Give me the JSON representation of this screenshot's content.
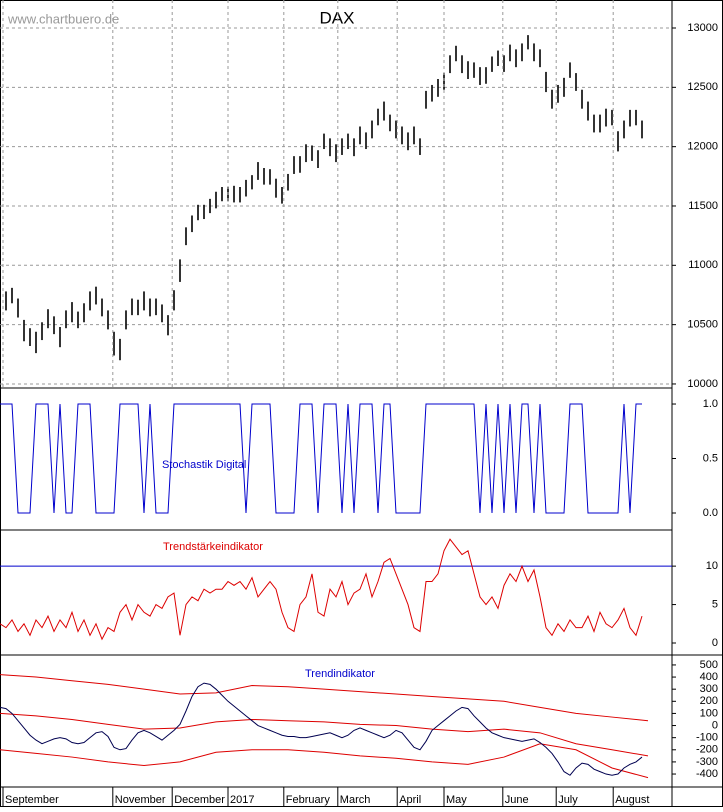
{
  "chart_data": [
    {
      "type": "ohlc",
      "title": "DAX",
      "subtitle": "www.chartbuero.de",
      "color": "#000000",
      "grid": true,
      "xlim": [
        0,
        112
      ],
      "ylim": [
        9966,
        13236
      ],
      "yticks": [
        10000,
        10500,
        11000,
        11500,
        12000,
        12500,
        13000
      ],
      "x": [
        0,
        1,
        2,
        3,
        4,
        5,
        6,
        7,
        8,
        9,
        10,
        11,
        12,
        13,
        14,
        15,
        16,
        17,
        18,
        19,
        20,
        21,
        22,
        23,
        24,
        25,
        26,
        27,
        28,
        29,
        30,
        31,
        32,
        33,
        34,
        35,
        36,
        37,
        38,
        39,
        40,
        41,
        42,
        43,
        44,
        45,
        46,
        47,
        48,
        49,
        50,
        51,
        52,
        53,
        54,
        55,
        56,
        57,
        58,
        59,
        60,
        61,
        62,
        63,
        64,
        65,
        66,
        67,
        68,
        69,
        70,
        71,
        72,
        73,
        74,
        75,
        76,
        77,
        78,
        79,
        80,
        81,
        82,
        83,
        84,
        85,
        86,
        87,
        88,
        89,
        90,
        91,
        92,
        93,
        94,
        95,
        96,
        97,
        98,
        99,
        100,
        101,
        102,
        103,
        104,
        105,
        106,
        107
      ],
      "high": [
        10680,
        10780,
        10810,
        10720,
        10540,
        10470,
        10440,
        10520,
        10630,
        10570,
        10480,
        10620,
        10690,
        10610,
        10680,
        10780,
        10820,
        10720,
        10620,
        10440,
        10380,
        10620,
        10720,
        10710,
        10780,
        10720,
        10720,
        10670,
        10580,
        10790,
        11050,
        11320,
        11420,
        11510,
        11510,
        11560,
        11620,
        11660,
        11660,
        11670,
        11660,
        11720,
        11760,
        11870,
        11820,
        11810,
        11730,
        11660,
        11770,
        11920,
        11920,
        12020,
        12010,
        11970,
        12110,
        12070,
        12020,
        12070,
        12110,
        12070,
        12170,
        12120,
        12220,
        12320,
        12380,
        12270,
        12220,
        12170,
        12120,
        12170,
        12070,
        12470,
        12520,
        12570,
        12620,
        12770,
        12850,
        12770,
        12720,
        12710,
        12670,
        12670,
        12760,
        12810,
        12770,
        12860,
        12820,
        12870,
        12940,
        12870,
        12820,
        12630,
        12480,
        12520,
        12580,
        12710,
        12620,
        12480,
        12380,
        12270,
        12270,
        12320,
        12310,
        12130,
        12220,
        12310,
        12310,
        12220
      ],
      "low": [
        10510,
        10620,
        10680,
        10560,
        10360,
        10320,
        10260,
        10370,
        10470,
        10420,
        10310,
        10470,
        10520,
        10470,
        10520,
        10620,
        10670,
        10570,
        10460,
        10240,
        10200,
        10460,
        10580,
        10580,
        10620,
        10570,
        10580,
        10520,
        10410,
        10620,
        10860,
        11170,
        11280,
        11380,
        11390,
        11440,
        11480,
        11540,
        11540,
        11530,
        11530,
        11580,
        11640,
        11720,
        11680,
        11680,
        11570,
        11520,
        11630,
        11770,
        11780,
        11870,
        11880,
        11820,
        11980,
        11920,
        11870,
        11930,
        11980,
        11920,
        12020,
        11980,
        12070,
        12180,
        12220,
        12130,
        12070,
        12020,
        11970,
        12020,
        11930,
        12320,
        12380,
        12420,
        12480,
        12620,
        12720,
        12620,
        12570,
        12580,
        12520,
        12530,
        12630,
        12680,
        12630,
        12720,
        12670,
        12720,
        12820,
        12720,
        12670,
        12460,
        12320,
        12370,
        12420,
        12580,
        12470,
        12320,
        12220,
        12120,
        12120,
        12170,
        12180,
        11960,
        12070,
        12170,
        12180,
        12070
      ]
    },
    {
      "type": "line",
      "title": "Stochastik Digital",
      "xlim": [
        0,
        112
      ],
      "ylim": [
        -0.156,
        1.147
      ],
      "yticks": [
        {
          "value": 0,
          "label": "0.0"
        },
        {
          "value": 0.5,
          "label": "0.5"
        },
        {
          "value": 1,
          "label": "1.0"
        }
      ],
      "series": [
        {
          "color": "#0000cc",
          "x": [
            0,
            1,
            2,
            3,
            4,
            5,
            6,
            7,
            8,
            9,
            10,
            11,
            12,
            13,
            14,
            15,
            16,
            17,
            18,
            19,
            20,
            21,
            22,
            23,
            24,
            25,
            26,
            27,
            28,
            29,
            30,
            31,
            32,
            33,
            34,
            35,
            36,
            37,
            38,
            39,
            40,
            41,
            42,
            43,
            44,
            45,
            46,
            47,
            48,
            49,
            50,
            51,
            52,
            53,
            54,
            55,
            56,
            57,
            58,
            59,
            60,
            61,
            62,
            63,
            64,
            65,
            66,
            67,
            68,
            69,
            70,
            71,
            72,
            73,
            74,
            75,
            76,
            77,
            78,
            79,
            80,
            81,
            82,
            83,
            84,
            85,
            86,
            87,
            88,
            89,
            90,
            91,
            92,
            93,
            94,
            95,
            96,
            97,
            98,
            99,
            100,
            101,
            102,
            103,
            104,
            105,
            106,
            107
          ],
          "values": [
            1,
            1,
            1,
            0,
            0,
            0,
            1,
            1,
            1,
            0,
            1,
            0,
            0,
            1,
            1,
            1,
            0,
            0,
            0,
            0,
            1,
            1,
            1,
            1,
            0,
            1,
            0,
            0,
            0,
            1,
            1,
            1,
            1,
            1,
            1,
            1,
            1,
            1,
            1,
            1,
            1,
            0,
            1,
            1,
            1,
            1,
            0,
            0,
            0,
            0,
            1,
            1,
            1,
            0,
            1,
            1,
            1,
            0,
            1,
            0,
            1,
            1,
            1,
            0,
            1,
            1,
            0,
            0,
            0,
            0,
            0,
            1,
            1,
            1,
            1,
            1,
            1,
            1,
            1,
            1,
            0,
            1,
            0,
            1,
            0,
            1,
            0,
            1,
            1,
            0,
            1,
            0,
            0,
            0,
            0,
            1,
            1,
            1,
            0,
            0,
            0,
            0,
            0,
            0,
            1,
            0,
            1,
            1
          ]
        }
      ]
    },
    {
      "type": "line",
      "title": "Trendstärkeindikator",
      "xlim": [
        0,
        112
      ],
      "ylim": [
        -1.56,
        14.7
      ],
      "yticks": [
        0,
        5,
        10
      ],
      "reference_line": 10,
      "reference_color": "#0000cc",
      "series": [
        {
          "color": "#dd0000",
          "x": [
            0,
            1,
            2,
            3,
            4,
            5,
            6,
            7,
            8,
            9,
            10,
            11,
            12,
            13,
            14,
            15,
            16,
            17,
            18,
            19,
            20,
            21,
            22,
            23,
            24,
            25,
            26,
            27,
            28,
            29,
            30,
            31,
            32,
            33,
            34,
            35,
            36,
            37,
            38,
            39,
            40,
            41,
            42,
            43,
            44,
            45,
            46,
            47,
            48,
            49,
            50,
            51,
            52,
            53,
            54,
            55,
            56,
            57,
            58,
            59,
            60,
            61,
            62,
            63,
            64,
            65,
            66,
            67,
            68,
            69,
            70,
            71,
            72,
            73,
            74,
            75,
            76,
            77,
            78,
            79,
            80,
            81,
            82,
            83,
            84,
            85,
            86,
            87,
            88,
            89,
            90,
            91,
            92,
            93,
            94,
            95,
            96,
            97,
            98,
            99,
            100,
            101,
            102,
            103,
            104,
            105,
            106,
            107
          ],
          "values": [
            2.5,
            2,
            3,
            1.5,
            2.5,
            1,
            3,
            2,
            3.5,
            1.5,
            3,
            2,
            4,
            1.5,
            3,
            1,
            2.5,
            0.5,
            2,
            1.5,
            4,
            5,
            3,
            5,
            4,
            3.5,
            5,
            4.5,
            6,
            6.5,
            1,
            5,
            6,
            5.5,
            7,
            6.5,
            7,
            7,
            8,
            7.5,
            8,
            7,
            8.5,
            6,
            7,
            8,
            7,
            4,
            2,
            1.5,
            5,
            6,
            9,
            4,
            3.5,
            7,
            6,
            8,
            5,
            6.5,
            7,
            9,
            6,
            8,
            10.5,
            11,
            9,
            7,
            5,
            2,
            1.5,
            8,
            8,
            9,
            12,
            13.5,
            12.5,
            11.5,
            12,
            9,
            6,
            5,
            6,
            4.5,
            7.5,
            9,
            8,
            10,
            8,
            9.5,
            6,
            2,
            1,
            2.5,
            1.5,
            3,
            2,
            2,
            3.5,
            1.5,
            4,
            2.5,
            2,
            3,
            4.5,
            2,
            1,
            3.5
          ]
        }
      ]
    },
    {
      "type": "line",
      "title": "Trendindikator",
      "xlim": [
        0,
        112
      ],
      "ylim": [
        -507,
        582
      ],
      "yticks": [
        -400,
        -300,
        -200,
        -100,
        0,
        100,
        200,
        300,
        400,
        500
      ],
      "xticks": [
        {
          "value": 0.5,
          "label": "September"
        },
        {
          "value": 18.8,
          "label": "November"
        },
        {
          "value": 28.7,
          "label": "December"
        },
        {
          "value": 38,
          "label": "2017"
        },
        {
          "value": 47.3,
          "label": "February"
        },
        {
          "value": 56.3,
          "label": "March"
        },
        {
          "value": 66.2,
          "label": "April"
        },
        {
          "value": 74,
          "label": "May"
        },
        {
          "value": 83.8,
          "label": "June"
        },
        {
          "value": 92.7,
          "label": "July"
        },
        {
          "value": 102.2,
          "label": "August"
        }
      ],
      "series": [
        {
          "color": "#dd0000",
          "x": [
            0,
            6,
            12,
            18,
            24,
            30,
            36,
            42,
            48,
            54,
            60,
            66,
            72,
            78,
            84,
            90,
            96,
            102,
            108
          ],
          "values": [
            420,
            400,
            370,
            340,
            300,
            260,
            270,
            330,
            320,
            300,
            280,
            260,
            240,
            220,
            200,
            150,
            100,
            70,
            40
          ]
        },
        {
          "color": "#dd0000",
          "x": [
            0,
            6,
            12,
            18,
            24,
            30,
            36,
            42,
            48,
            54,
            60,
            66,
            72,
            78,
            84,
            90,
            96,
            102,
            108
          ],
          "values": [
            100,
            80,
            50,
            10,
            -30,
            -20,
            30,
            50,
            40,
            30,
            10,
            0,
            -30,
            -50,
            -30,
            -60,
            -150,
            -200,
            -250
          ]
        },
        {
          "color": "#dd0000",
          "x": [
            0,
            6,
            12,
            18,
            24,
            30,
            36,
            42,
            48,
            54,
            60,
            66,
            72,
            78,
            84,
            90,
            96,
            102,
            108
          ],
          "values": [
            -200,
            -230,
            -260,
            -300,
            -330,
            -300,
            -220,
            -200,
            -200,
            -220,
            -250,
            -270,
            -300,
            -320,
            -260,
            -150,
            -200,
            -350,
            -430
          ]
        },
        {
          "color": "#000050",
          "x": [
            0,
            1,
            2,
            3,
            4,
            5,
            6,
            7,
            8,
            9,
            10,
            11,
            12,
            13,
            14,
            15,
            16,
            17,
            18,
            19,
            20,
            21,
            22,
            23,
            24,
            25,
            26,
            27,
            28,
            29,
            30,
            31,
            32,
            33,
            34,
            35,
            36,
            37,
            38,
            39,
            40,
            41,
            42,
            43,
            44,
            45,
            46,
            47,
            48,
            49,
            50,
            51,
            52,
            53,
            54,
            55,
            56,
            57,
            58,
            59,
            60,
            61,
            62,
            63,
            64,
            65,
            66,
            67,
            68,
            69,
            70,
            71,
            72,
            73,
            74,
            75,
            76,
            77,
            78,
            79,
            80,
            81,
            82,
            83,
            84,
            85,
            86,
            87,
            88,
            89,
            90,
            91,
            92,
            93,
            94,
            95,
            96,
            97,
            98,
            99,
            100,
            101,
            102,
            103,
            104,
            105,
            106,
            107
          ],
          "values": [
            150,
            140,
            100,
            40,
            -20,
            -80,
            -120,
            -150,
            -130,
            -110,
            -100,
            -110,
            -140,
            -150,
            -140,
            -100,
            -60,
            -50,
            -90,
            -180,
            -200,
            -190,
            -120,
            -60,
            -40,
            -60,
            -90,
            -120,
            -80,
            -40,
            10,
            120,
            240,
            320,
            350,
            340,
            300,
            250,
            200,
            160,
            120,
            80,
            40,
            0,
            -20,
            -40,
            -60,
            -80,
            -90,
            -90,
            -100,
            -100,
            -90,
            -80,
            -70,
            -60,
            -80,
            -100,
            -80,
            -40,
            -20,
            -40,
            -60,
            -80,
            -100,
            -80,
            -40,
            -60,
            -120,
            -180,
            -200,
            -130,
            -40,
            0,
            40,
            80,
            120,
            150,
            140,
            80,
            30,
            -20,
            -60,
            -80,
            -100,
            -110,
            -120,
            -130,
            -120,
            -110,
            -140,
            -180,
            -230,
            -300,
            -380,
            -410,
            -350,
            -310,
            -320,
            -360,
            -380,
            -400,
            -410,
            -400,
            -350,
            -320,
            -300,
            -260
          ]
        }
      ]
    }
  ]
}
